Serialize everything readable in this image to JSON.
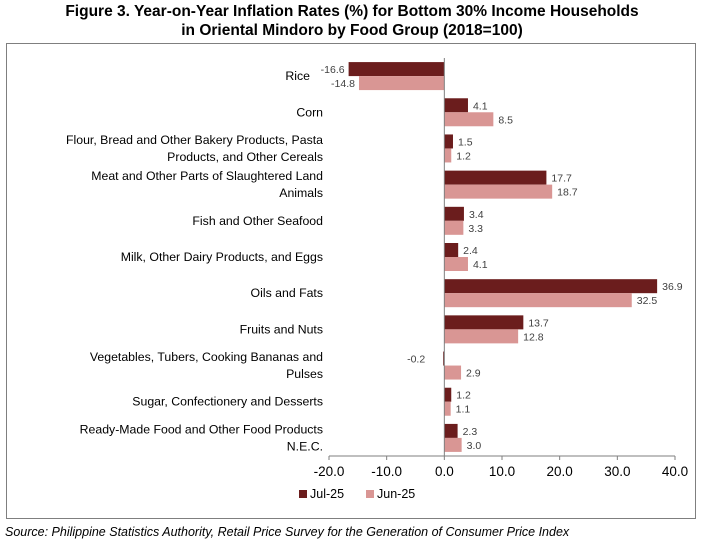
{
  "figure": {
    "title_line1": "Figure 3. Year-on-Year Inflation Rates (%) for Bottom 30% Income Households",
    "title_line2": "in Oriental Mindoro by Food Group (2018=100)",
    "source": "Source: Philippine Statistics Authority, Retail Price Survey for the Generation of Consumer Price Index"
  },
  "colors": {
    "Jul-25": "#6b1d1d",
    "Jun-25": "#d99694",
    "axis": "#7f7f7f"
  },
  "chart_data": {
    "type": "bar",
    "orientation": "horizontal",
    "categories": [
      [
        "Rice"
      ],
      [
        "Corn"
      ],
      [
        "Flour, Bread and Other Bakery Products, Pasta",
        "Products, and Other Cereals"
      ],
      [
        "Meat and Other Parts of Slaughtered Land",
        "Animals"
      ],
      [
        "Fish and Other Seafood"
      ],
      [
        "Milk, Other Dairy Products, and Eggs"
      ],
      [
        "Oils and Fats"
      ],
      [
        "Fruits and Nuts"
      ],
      [
        "Vegetables, Tubers, Cooking Bananas and",
        "Pulses"
      ],
      [
        "Sugar, Confectionery and Desserts"
      ],
      [
        "Ready-Made Food and Other Food Products",
        "N.E.C."
      ]
    ],
    "series": [
      {
        "name": "Jul-25",
        "values": [
          -16.6,
          4.1,
          1.5,
          17.7,
          3.4,
          2.4,
          36.9,
          13.7,
          -0.2,
          1.2,
          2.3
        ],
        "labels": [
          "-16.6",
          "4.1",
          "1.5",
          "17.7",
          "3.4",
          "2.4",
          "36.9",
          "13.7",
          "-0.2",
          "1.2",
          "2.3"
        ]
      },
      {
        "name": "Jun-25",
        "values": [
          -14.8,
          8.5,
          1.2,
          18.7,
          3.3,
          4.1,
          32.5,
          12.8,
          2.9,
          1.1,
          3.0
        ],
        "labels": [
          "-14.8",
          "8.5",
          "1.2",
          "18.7",
          "3.3",
          "4.1",
          "32.5",
          "12.8",
          "2.9",
          "1.1",
          "3.0"
        ]
      }
    ],
    "xlim": [
      -20,
      40
    ],
    "xticks": [
      -20,
      -10,
      0,
      10,
      20,
      30,
      40
    ],
    "xtick_labels": [
      "-20.0",
      "-10.0",
      "0.0",
      "10.0",
      "20.0",
      "30.0",
      "40.0"
    ],
    "grid": false,
    "legend_position": "bottom-left"
  }
}
